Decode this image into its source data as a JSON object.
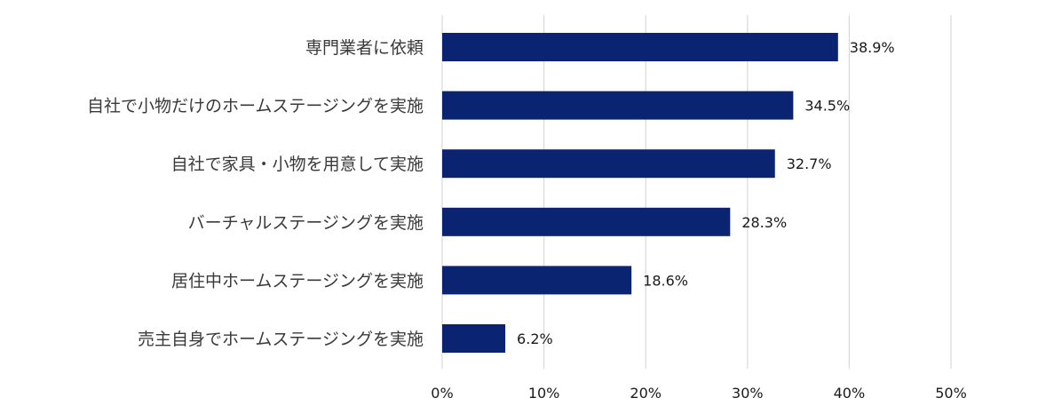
{
  "chart_data": {
    "type": "bar",
    "orientation": "horizontal",
    "categories": [
      "専門業者に依頼",
      "自社で小物だけのホームステージングを実施",
      "自社で家具・小物を用意して実施",
      "バーチャルステージングを実施",
      "居住中ホームステージングを実施",
      "売主自身でホームステージングを実施"
    ],
    "values": [
      38.9,
      34.5,
      32.7,
      28.3,
      18.6,
      6.2
    ],
    "value_labels": [
      "38.9%",
      "34.5%",
      "32.7%",
      "28.3%",
      "18.6%",
      "6.2%"
    ],
    "xlim": [
      0,
      50
    ],
    "xticks": [
      0,
      10,
      20,
      30,
      40,
      50
    ],
    "xtick_labels": [
      "0%",
      "10%",
      "20%",
      "30%",
      "40%",
      "50%"
    ],
    "grid": "vertical",
    "legend": "none",
    "bar_color": "#0b2471",
    "grid_color": "#d9d9d9",
    "title": "",
    "xlabel": "",
    "ylabel": ""
  }
}
